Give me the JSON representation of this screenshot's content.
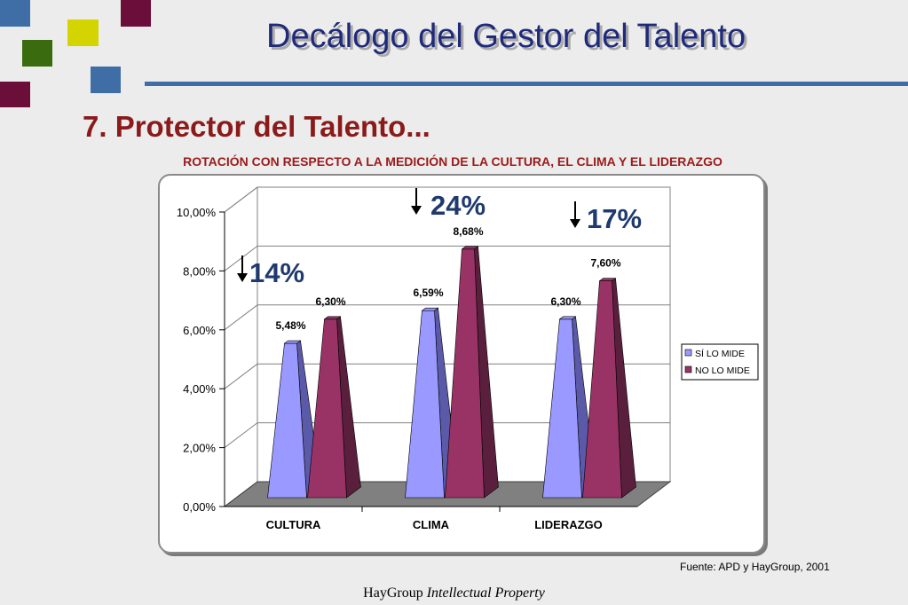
{
  "slide": {
    "title": "Decálogo del Gestor del Talento",
    "section_heading": "7. Protector del Talento...",
    "source_note": "Fuente: APD y HayGroup, 2001",
    "footer_brand": "HayGroup",
    "footer_tagline": "Intellectual Property"
  },
  "colors": {
    "title_text": "#1f2a7a",
    "rule": "#3f6ea6",
    "heading": "#8b1a1a",
    "series_si": "#9999ff",
    "series_no": "#993366",
    "callout_text": "#1f3a6e",
    "squares": [
      "#3f6ea6",
      "#d4d400",
      "#6b0f3a",
      "#3a6b0f",
      "#3f6ea6",
      "#6b0f3a"
    ]
  },
  "chart_data": {
    "type": "bar",
    "style": "3d-cone",
    "title": "ROTACIÓN CON RESPECTO A LA MEDICIÓN DE LA CULTURA, EL CLIMA Y EL LIDERAZGO",
    "categories": [
      "CULTURA",
      "CLIMA",
      "LIDERAZGO"
    ],
    "series": [
      {
        "name": "SÍ LO MIDE",
        "values": [
          5.48,
          6.59,
          6.3
        ]
      },
      {
        "name": "NO LO MIDE",
        "values": [
          6.3,
          8.68,
          7.6
        ]
      }
    ],
    "data_labels": [
      [
        "5,48%",
        "6,59%",
        "6,30%"
      ],
      [
        "6,30%",
        "8,68%",
        "7,60%"
      ]
    ],
    "y_ticks": [
      0,
      2,
      4,
      6,
      8,
      10
    ],
    "y_tick_labels": [
      "0,00%",
      "2,00%",
      "4,00%",
      "6,00%",
      "8,00%",
      "10,00%"
    ],
    "ylim": [
      0,
      10
    ],
    "grid": true,
    "legend_position": "right",
    "callouts": [
      "14%",
      "24%",
      "17%"
    ],
    "callout_arrow": "down-arrow-icon"
  }
}
